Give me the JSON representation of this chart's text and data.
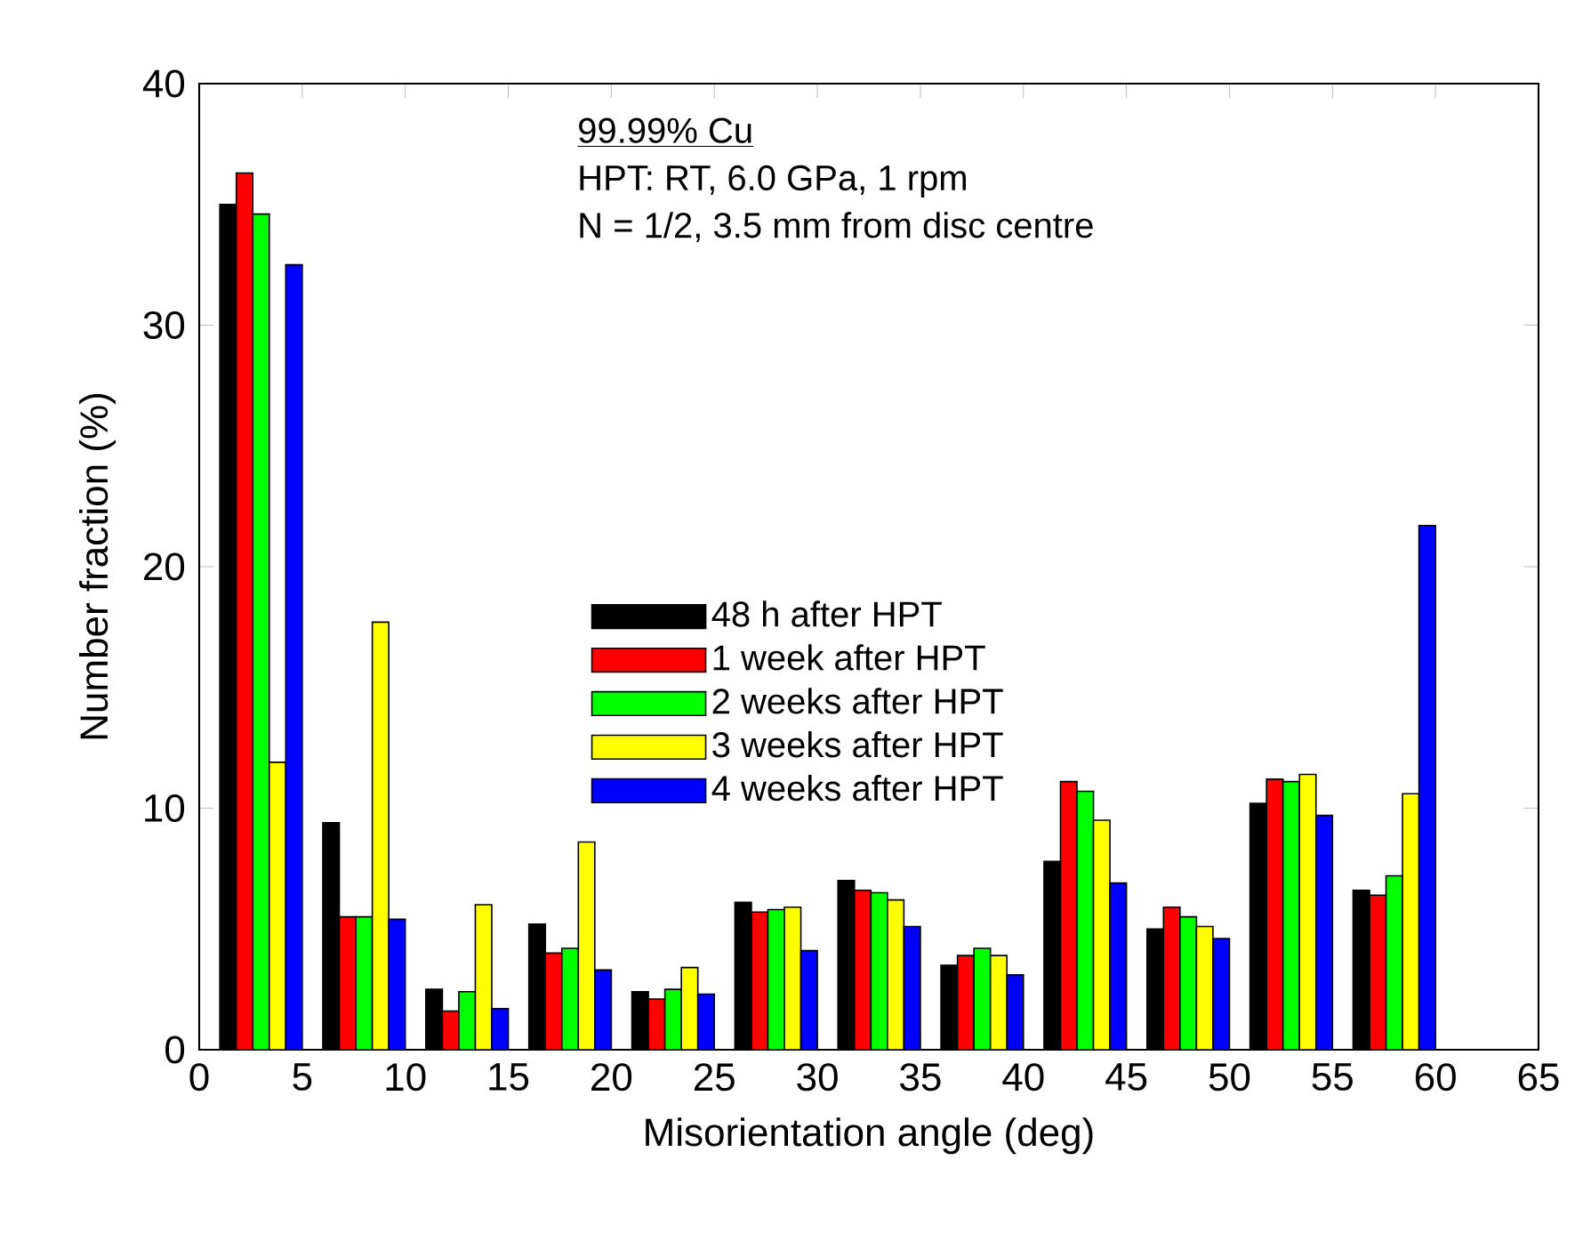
{
  "chart_data": {
    "type": "bar",
    "xlabel": "Misorientation angle (deg)",
    "ylabel": "Number fraction (%)",
    "annotations": [
      "99.99% Cu",
      "HPT: RT, 6.0 GPa, 1 rpm",
      "N = 1/2, 3.5 mm from disc centre"
    ],
    "xlim": [
      0,
      65
    ],
    "xticks": [
      0,
      5,
      10,
      15,
      20,
      25,
      30,
      35,
      40,
      45,
      50,
      55,
      60,
      65
    ],
    "ylim": [
      0,
      40
    ],
    "yticks": [
      0,
      10,
      20,
      30,
      40
    ],
    "grid": false,
    "legend": "center",
    "series": [
      {
        "name": "48 h after HPT",
        "color": "#000000",
        "x": [
          1.4,
          6.4,
          11.4,
          16.4,
          21.4,
          26.4,
          31.4,
          36.4,
          41.4,
          46.4,
          51.4,
          56.4
        ],
        "values": [
          35.0,
          9.4,
          2.5,
          5.2,
          2.4,
          6.1,
          7.0,
          3.5,
          7.8,
          5.0,
          10.2,
          6.6
        ]
      },
      {
        "name": "1 week after HPT",
        "color": "#ff0000",
        "x": [
          2.2,
          7.2,
          12.2,
          17.2,
          22.2,
          27.2,
          32.2,
          37.2,
          42.2,
          47.2,
          52.2,
          57.2
        ],
        "values": [
          36.3,
          5.5,
          1.6,
          4.0,
          2.1,
          5.7,
          6.6,
          3.9,
          11.1,
          5.9,
          11.2,
          6.4
        ]
      },
      {
        "name": "2 weeks after HPT",
        "color": "#00ff00",
        "x": [
          3.0,
          8.0,
          13.0,
          18.0,
          23.0,
          28.0,
          33.0,
          38.0,
          43.0,
          48.0,
          53.0,
          58.0
        ],
        "values": [
          34.6,
          5.5,
          2.4,
          4.2,
          2.5,
          5.8,
          6.5,
          4.2,
          10.7,
          5.5,
          11.1,
          7.2
        ]
      },
      {
        "name": "3 weeks after HPT",
        "color": "#ffff00",
        "x": [
          3.8,
          8.8,
          13.8,
          18.8,
          23.8,
          28.8,
          33.8,
          38.8,
          43.8,
          48.8,
          53.8,
          58.8
        ],
        "values": [
          11.9,
          17.7,
          6.0,
          8.6,
          3.4,
          5.9,
          6.2,
          3.9,
          9.5,
          5.1,
          11.4,
          10.6
        ]
      },
      {
        "name": "4 weeks after HPT",
        "color": "#0000ff",
        "x": [
          4.6,
          9.6,
          14.6,
          19.6,
          24.6,
          29.6,
          34.6,
          39.6,
          44.6,
          49.6,
          54.6,
          59.6
        ],
        "values": [
          32.5,
          5.4,
          1.7,
          3.3,
          2.3,
          4.1,
          5.1,
          3.1,
          6.9,
          4.6,
          9.7,
          21.7
        ]
      }
    ]
  }
}
